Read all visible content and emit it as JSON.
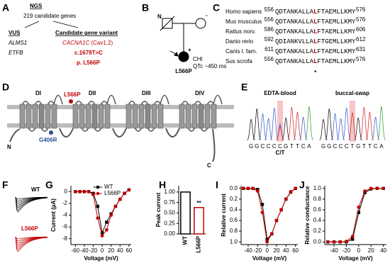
{
  "panels": {
    "A": {
      "letter": "A",
      "ngs": "NGS",
      "genes": "219 candidate genes",
      "vus_title": "VUS",
      "vus": [
        "ALMS1",
        "ETFB"
      ],
      "candidate_title": "Candidate gene variant",
      "gene": "CACNA1C",
      "protein": "(Cav1.2)",
      "cdna": "c.1679T>C",
      "variant": "p. L566P"
    },
    "B": {
      "letter": "B",
      "father_mark": "N",
      "mother_mark": "-",
      "proband_mark": "+",
      "phenotype": "CHI",
      "qtc": "QTc ~450 ms",
      "proband": "L566P"
    },
    "C": {
      "letter": "C",
      "rows": [
        {
          "species": "Homo sapiens",
          "start": 556,
          "pre": "QDTANKALLA",
          "mut": "L",
          "post": "FTAEMLLKMY",
          "end": 576
        },
        {
          "species": "Mus musculus",
          "start": 556,
          "pre": "QDTANKALLA",
          "mut": "L",
          "post": "FTAEMLLKMY",
          "end": 576
        },
        {
          "species": "Rattus norv.",
          "start": 586,
          "pre": "QDTANKALLA",
          "mut": "L",
          "post": "FTAEMLLKMY",
          "end": 606
        },
        {
          "species": "Danio rerio",
          "start": 592,
          "pre": "QDIANKVLLA",
          "mut": "L",
          "post": "FTGEMLLKMY",
          "end": 612
        },
        {
          "species": "Canis l. fam.",
          "start": 611,
          "pre": "QDTANKALLA",
          "mut": "L",
          "post": "FTAEMLLKMY",
          "end": 631
        },
        {
          "species": "Sus scrofa",
          "start": 556,
          "pre": "QDTANKALLA",
          "mut": "L",
          "post": "FTAEMLLKMY",
          "end": 576
        }
      ],
      "conserved": "*"
    },
    "D": {
      "letter": "D",
      "domains": [
        "DI",
        "DII",
        "DIII",
        "DIV"
      ],
      "mutation": "L566P",
      "other_mutation": "G406R",
      "n_term": "N",
      "c_term": "C"
    },
    "E": {
      "letter": "E",
      "titles": [
        "EDTA-blood",
        "buccal-swap"
      ],
      "bases": [
        [
          "G",
          "G",
          "C",
          "C",
          "C",
          "C",
          "G",
          "T",
          "T",
          "C",
          "A"
        ],
        [
          "G",
          "G",
          "C",
          "C",
          "C",
          "T",
          "G",
          "T",
          "T",
          "C",
          "A"
        ]
      ],
      "het": "C/T"
    },
    "F": {
      "letter": "F",
      "wt": "WT",
      "mutant": "L566P"
    }
  },
  "chart_data": [
    {
      "type": "line",
      "letter": "G",
      "xlabel": "Voltage (mV)",
      "ylabel": "Current (µA)",
      "x": [
        -60,
        -50,
        -40,
        -30,
        -20,
        -10,
        0,
        10,
        20,
        30,
        40,
        50,
        60
      ],
      "series": [
        {
          "name": "WT",
          "color": "#000000",
          "marker": "square",
          "values": [
            0,
            0,
            0,
            0,
            -0.3,
            -2.5,
            -7,
            -5.2,
            -3.8,
            -2.5,
            -1.3,
            -0.3,
            0.3
          ]
        },
        {
          "name": "L566P",
          "color": "#c00000",
          "marker": "circle",
          "values": [
            0,
            0,
            0,
            0,
            -0.5,
            -4.5,
            -7.5,
            -6.5,
            -4,
            -2.5,
            -1.3,
            -0.3,
            0.3
          ]
        }
      ],
      "xlim": [
        -70,
        65
      ],
      "xticks": [
        -60,
        -40,
        -20,
        0,
        20,
        40,
        60
      ],
      "ylim": [
        -9,
        1
      ],
      "yticks": [
        0,
        -2,
        -4,
        -6,
        -8
      ],
      "legend": "upper-left"
    },
    {
      "type": "bar",
      "letter": "H",
      "ylabel": "Peak current",
      "categories": [
        "WT",
        "L566P"
      ],
      "values": [
        1.0,
        0.63
      ],
      "colors": [
        "#000000",
        "#c00000"
      ],
      "annotation": "**",
      "ylim": [
        0,
        1.15
      ],
      "yticks": [
        {
          "value": 0,
          "label": "0.00"
        },
        {
          "value": 0.25,
          "label": "0.25"
        },
        {
          "value": 0.5,
          "label": "0.50"
        },
        {
          "value": 0.75,
          "label": "0.75"
        },
        {
          "value": 1,
          "label": "1.00"
        }
      ]
    },
    {
      "type": "line",
      "letter": "I",
      "xlabel": "Voltage (mV)",
      "ylabel": "Relative current",
      "x": [
        -50,
        -40,
        -30,
        -20,
        -10,
        0,
        10,
        20,
        30,
        40,
        50,
        60
      ],
      "series": [
        {
          "color": "#000000",
          "marker": "square",
          "values": [
            0,
            0,
            0,
            0.02,
            0.3,
            0.95,
            0.85,
            0.6,
            0.4,
            0.2,
            0.07,
            0
          ]
        },
        {
          "color": "#c00000",
          "marker": "circle",
          "values": [
            0,
            0,
            0,
            0.05,
            0.45,
            1,
            0.85,
            0.6,
            0.4,
            0.2,
            0.06,
            0
          ]
        }
      ],
      "xlim": [
        -55,
        65
      ],
      "xticks": [
        -40,
        -20,
        0,
        20,
        40,
        60
      ],
      "ylim": [
        1.05,
        -0.05
      ],
      "yticks": [
        {
          "value": 0,
          "label": "0.0"
        },
        0.2,
        0.4,
        0.6,
        0.8,
        {
          "value": 1,
          "label": "1.0"
        }
      ]
    },
    {
      "type": "line",
      "letter": "J",
      "xlabel": "Voltage (mV)",
      "ylabel": "Relative conductance",
      "x": [
        -50,
        -40,
        -30,
        -20,
        -10,
        0,
        10,
        20,
        30,
        40
      ],
      "series": [
        {
          "color": "#000000",
          "marker": "square",
          "values": [
            0,
            0,
            0,
            0,
            0.05,
            0.55,
            0.92,
            0.99,
            1,
            1
          ]
        },
        {
          "color": "#c00000",
          "marker": "circle",
          "values": [
            0,
            0,
            0,
            0.01,
            0.1,
            0.65,
            0.95,
            1,
            1,
            1
          ]
        }
      ],
      "xlim": [
        -55,
        45
      ],
      "xticks": [
        -40,
        -20,
        0,
        20,
        40
      ],
      "ylim": [
        -0.05,
        1.05
      ],
      "yticks": [
        {
          "value": 0,
          "label": "0.0"
        },
        0.2,
        0.4,
        0.6,
        0.8,
        {
          "value": 1,
          "label": "1.0"
        }
      ]
    }
  ]
}
